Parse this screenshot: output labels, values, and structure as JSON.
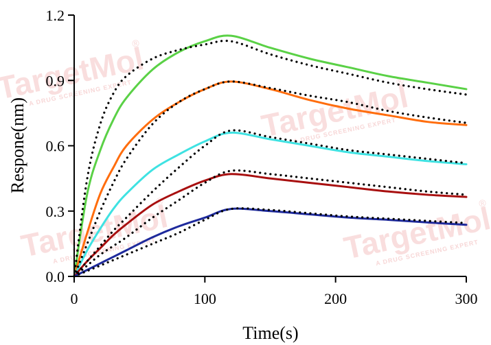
{
  "watermark": {
    "brand": "TargetMol",
    "registered": "®",
    "tagline": "A DRUG SCREENING EXPERT"
  },
  "chart_data": {
    "type": "line",
    "title": "",
    "xlabel": "Time(s)",
    "ylabel": "Respone(nm)",
    "xlim": [
      0,
      300
    ],
    "ylim": [
      0,
      1.2
    ],
    "xticks": [
      0,
      100,
      200,
      300
    ],
    "yticks": [
      0.0,
      0.3,
      0.6,
      0.9,
      1.2
    ],
    "xtick_labels": [
      "0",
      "100",
      "200",
      "300"
    ],
    "ytick_labels": [
      "0.0",
      "0.3",
      "0.6",
      "0.9",
      "1.2"
    ],
    "grid": false,
    "legend": "none",
    "association_end": 120,
    "series": [
      {
        "color": "#5ad146",
        "x": [
          0,
          10,
          20,
          30,
          40,
          60,
          80,
          100,
          120,
          150,
          180,
          210,
          240,
          270,
          300
        ],
        "y": [
          0,
          0.38,
          0.58,
          0.72,
          0.82,
          0.95,
          1.03,
          1.08,
          1.105,
          1.05,
          1.0,
          0.96,
          0.92,
          0.89,
          0.86
        ]
      },
      {
        "color": "#ff6d0d",
        "x": [
          0,
          10,
          20,
          30,
          40,
          60,
          80,
          100,
          120,
          150,
          180,
          210,
          240,
          270,
          300
        ],
        "y": [
          0,
          0.2,
          0.38,
          0.5,
          0.6,
          0.72,
          0.8,
          0.86,
          0.895,
          0.86,
          0.81,
          0.77,
          0.74,
          0.71,
          0.695
        ]
      },
      {
        "color": "#3fe2e2",
        "x": [
          0,
          10,
          20,
          30,
          40,
          60,
          80,
          100,
          120,
          150,
          180,
          210,
          240,
          270,
          300
        ],
        "y": [
          0,
          0.12,
          0.22,
          0.31,
          0.38,
          0.49,
          0.56,
          0.62,
          0.66,
          0.63,
          0.6,
          0.57,
          0.55,
          0.53,
          0.515
        ]
      },
      {
        "color": "#a80f0f",
        "x": [
          0,
          10,
          20,
          30,
          40,
          60,
          80,
          100,
          120,
          150,
          180,
          210,
          240,
          270,
          300
        ],
        "y": [
          0,
          0.07,
          0.13,
          0.19,
          0.24,
          0.33,
          0.39,
          0.44,
          0.47,
          0.45,
          0.43,
          0.41,
          0.39,
          0.375,
          0.365
        ]
      },
      {
        "color": "#1e2a9c",
        "x": [
          0,
          10,
          20,
          30,
          40,
          60,
          80,
          100,
          120,
          150,
          180,
          210,
          240,
          270,
          300
        ],
        "y": [
          0,
          0.03,
          0.06,
          0.09,
          0.12,
          0.18,
          0.23,
          0.27,
          0.31,
          0.3,
          0.285,
          0.27,
          0.26,
          0.248,
          0.237
        ]
      }
    ],
    "fits": [
      {
        "x": [
          0,
          10,
          20,
          30,
          40,
          60,
          80,
          100,
          120,
          150,
          180,
          210,
          240,
          270,
          300
        ],
        "y": [
          0,
          0.45,
          0.7,
          0.84,
          0.92,
          1.0,
          1.04,
          1.065,
          1.08,
          1.02,
          0.97,
          0.93,
          0.89,
          0.86,
          0.835
        ]
      },
      {
        "x": [
          0,
          10,
          20,
          30,
          40,
          60,
          80,
          100,
          120,
          150,
          180,
          210,
          240,
          270,
          300
        ],
        "y": [
          0,
          0.15,
          0.3,
          0.43,
          0.54,
          0.7,
          0.8,
          0.86,
          0.895,
          0.865,
          0.83,
          0.8,
          0.76,
          0.73,
          0.705
        ]
      },
      {
        "x": [
          0,
          10,
          20,
          30,
          40,
          60,
          80,
          100,
          120,
          150,
          180,
          210,
          240,
          270,
          300
        ],
        "y": [
          0,
          0.07,
          0.14,
          0.21,
          0.27,
          0.39,
          0.5,
          0.6,
          0.67,
          0.64,
          0.61,
          0.58,
          0.56,
          0.54,
          0.52
        ]
      },
      {
        "x": [
          0,
          10,
          20,
          30,
          40,
          60,
          80,
          100,
          120,
          150,
          180,
          210,
          240,
          270,
          300
        ],
        "y": [
          0,
          0.05,
          0.1,
          0.14,
          0.18,
          0.27,
          0.35,
          0.43,
          0.485,
          0.47,
          0.45,
          0.43,
          0.41,
          0.39,
          0.375
        ]
      },
      {
        "x": [
          0,
          10,
          20,
          30,
          40,
          60,
          80,
          100,
          120,
          150,
          180,
          210,
          240,
          270,
          300
        ],
        "y": [
          0,
          0.025,
          0.05,
          0.075,
          0.1,
          0.15,
          0.2,
          0.26,
          0.31,
          0.305,
          0.29,
          0.275,
          0.265,
          0.255,
          0.245
        ]
      }
    ]
  }
}
